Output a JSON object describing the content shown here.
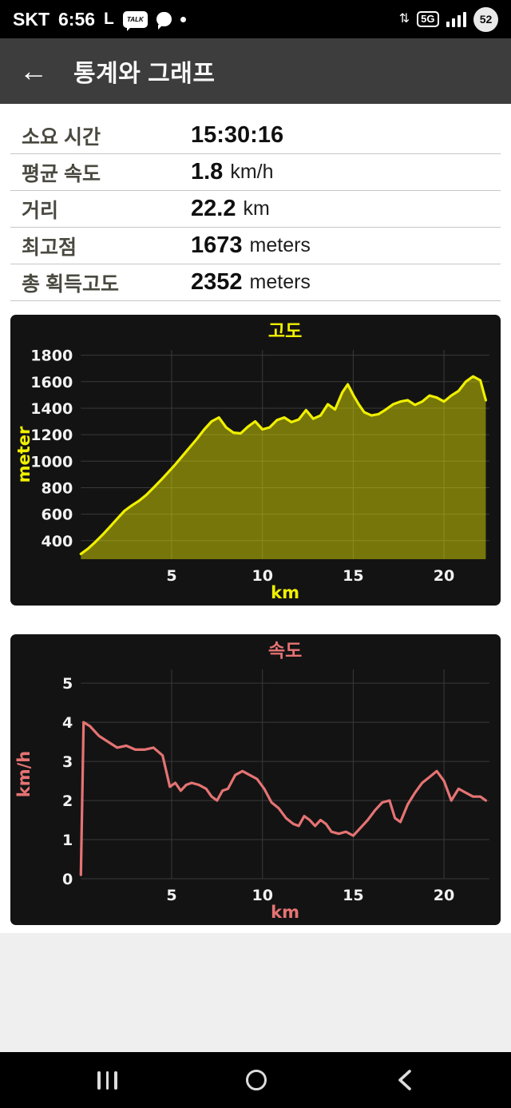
{
  "status_bar": {
    "carrier": "SKT",
    "time": "6:56",
    "lte_label": "L",
    "talk_label": "TALK",
    "network_label": "5G",
    "battery_percent": "52"
  },
  "header": {
    "back_icon": "←",
    "title": "통계와 그래프"
  },
  "stats": [
    {
      "label": "소요 시간",
      "value": "15:30:16",
      "unit": ""
    },
    {
      "label": "평균 속도",
      "value": "1.8",
      "unit": "km/h"
    },
    {
      "label": "거리",
      "value": "22.2",
      "unit": "km"
    },
    {
      "label": "최고점",
      "value": "1673",
      "unit": "meters"
    },
    {
      "label": "총 획득고도",
      "value": "2352",
      "unit": "meters"
    }
  ],
  "chart_data": [
    {
      "type": "area",
      "title": "고도",
      "xlabel": "km",
      "ylabel": "meter",
      "color": "#f0f000",
      "grid": true,
      "xlim": [
        0,
        22.5
      ],
      "ylim": [
        260,
        1840
      ],
      "xticks": [
        5,
        10,
        15,
        20
      ],
      "yticks": [
        400,
        600,
        800,
        1000,
        1200,
        1400,
        1600,
        1800
      ],
      "x": [
        0,
        0.4,
        0.8,
        1.2,
        1.6,
        2.0,
        2.4,
        2.8,
        3.2,
        3.6,
        4.0,
        4.4,
        4.8,
        5.2,
        5.6,
        6.0,
        6.4,
        6.8,
        7.2,
        7.6,
        8.0,
        8.4,
        8.8,
        9.2,
        9.6,
        10.0,
        10.4,
        10.8,
        11.2,
        11.6,
        12.0,
        12.4,
        12.8,
        13.2,
        13.6,
        14.0,
        14.4,
        14.7,
        15.0,
        15.3,
        15.6,
        16.0,
        16.4,
        16.8,
        17.2,
        17.6,
        18.0,
        18.4,
        18.8,
        19.2,
        19.6,
        20.0,
        20.4,
        20.8,
        21.2,
        21.6,
        22.0,
        22.3
      ],
      "y": [
        300,
        340,
        390,
        445,
        505,
        565,
        625,
        665,
        700,
        745,
        800,
        855,
        915,
        975,
        1040,
        1105,
        1170,
        1240,
        1300,
        1330,
        1255,
        1215,
        1210,
        1260,
        1300,
        1240,
        1255,
        1310,
        1330,
        1295,
        1315,
        1385,
        1320,
        1345,
        1430,
        1390,
        1520,
        1580,
        1500,
        1430,
        1370,
        1345,
        1355,
        1390,
        1430,
        1450,
        1460,
        1425,
        1450,
        1495,
        1480,
        1450,
        1495,
        1530,
        1600,
        1640,
        1610,
        1460
      ]
    },
    {
      "type": "line",
      "title": "속도",
      "xlabel": "km",
      "ylabel": "km/h",
      "color": "#e57373",
      "grid": true,
      "xlim": [
        0,
        22.5
      ],
      "ylim": [
        0,
        5.35
      ],
      "xticks": [
        5,
        10,
        15,
        20
      ],
      "yticks": [
        0,
        1,
        2,
        3,
        4,
        5
      ],
      "x": [
        0,
        0.15,
        0.5,
        1.0,
        1.5,
        2.0,
        2.5,
        3.0,
        3.5,
        4.0,
        4.5,
        4.9,
        5.2,
        5.5,
        5.8,
        6.1,
        6.5,
        6.9,
        7.2,
        7.5,
        7.8,
        8.1,
        8.5,
        8.9,
        9.3,
        9.7,
        10.1,
        10.5,
        10.9,
        11.3,
        11.7,
        12.0,
        12.3,
        12.6,
        12.9,
        13.2,
        13.5,
        13.8,
        14.2,
        14.6,
        15.0,
        15.4,
        15.8,
        16.2,
        16.6,
        17.0,
        17.3,
        17.6,
        18.0,
        18.4,
        18.8,
        19.2,
        19.6,
        20.0,
        20.4,
        20.8,
        21.2,
        21.6,
        22.0,
        22.3
      ],
      "y": [
        0.1,
        4.0,
        3.9,
        3.65,
        3.5,
        3.35,
        3.4,
        3.3,
        3.3,
        3.35,
        3.15,
        2.35,
        2.45,
        2.25,
        2.4,
        2.45,
        2.4,
        2.3,
        2.1,
        2.0,
        2.25,
        2.3,
        2.65,
        2.75,
        2.65,
        2.55,
        2.3,
        1.95,
        1.8,
        1.55,
        1.4,
        1.35,
        1.6,
        1.5,
        1.35,
        1.5,
        1.4,
        1.2,
        1.15,
        1.2,
        1.1,
        1.3,
        1.5,
        1.75,
        1.95,
        2.0,
        1.55,
        1.45,
        1.9,
        2.2,
        2.45,
        2.6,
        2.75,
        2.5,
        2.0,
        2.3,
        2.2,
        2.1,
        2.1,
        2.0
      ]
    }
  ],
  "colors": {
    "chart_background": "#131313",
    "elevation_accent": "#f0f000",
    "speed_accent": "#e57373",
    "header_background": "#3d3d3d"
  }
}
